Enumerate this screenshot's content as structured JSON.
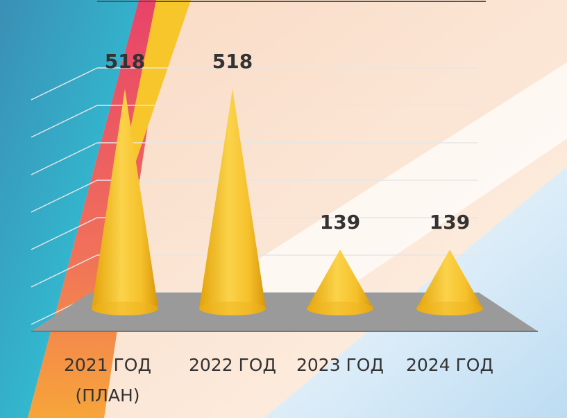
{
  "chart_data": {
    "type": "cone",
    "categories": [
      "2021 ГОД (ПЛАН)",
      "2022 ГОД",
      "2023 ГОД",
      "2024 ГОД"
    ],
    "values": [
      518,
      518,
      139,
      139
    ],
    "color": "#f2b81c",
    "ylim": [
      0,
      600
    ],
    "yticks": [
      0,
      100,
      200,
      300,
      400,
      500,
      600
    ],
    "grid": true
  }
}
